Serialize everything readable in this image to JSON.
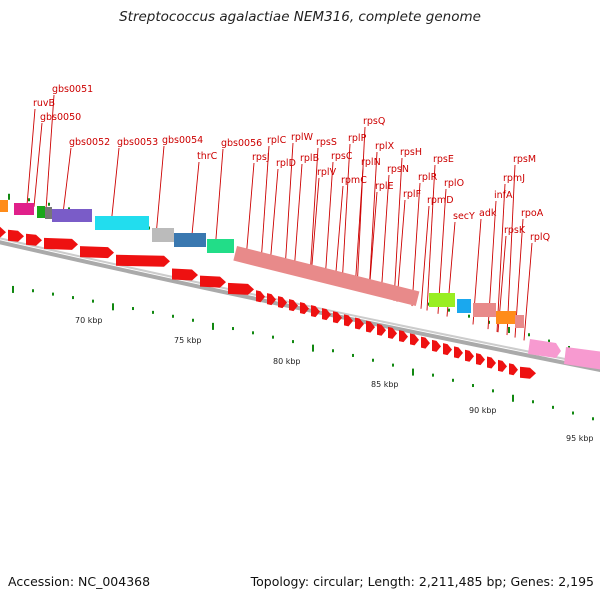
{
  "title": "Streptococcus agalactiae NEM316, complete genome",
  "accession": "Accession: NC_004368",
  "stats": "Topology: circular; Length: 2,211,485 bp; Genes: 2,195",
  "colors": {
    "label": "#cc0000",
    "cds": "#ee1111",
    "rps": "#e88a8a",
    "backbone": "#888888",
    "tick": "#118811"
  },
  "kbp_labels": [
    "70 kbp",
    "75 kbp",
    "80 kbp",
    "85 kbp",
    "90 kbp",
    "95 kbp"
  ],
  "gene_labels": [
    "gbs0051",
    "ruvB",
    "gbs0050",
    "gbs0052",
    "gbs0053",
    "gbs0054",
    "thrC",
    "gbs0056",
    "rplC",
    "rpsJ",
    "rplW",
    "rplD",
    "rpsS",
    "rplB",
    "rplP",
    "rpsC",
    "rplV",
    "rpsQ",
    "rpmC",
    "rplX",
    "rplN",
    "rplE",
    "rpsN",
    "rpsH",
    "rplF",
    "rplR",
    "rpsE",
    "rpmD",
    "rplO",
    "secY",
    "adk",
    "infA",
    "rpmJ",
    "rpsM",
    "rpsK",
    "rpoA",
    "rplQ"
  ]
}
